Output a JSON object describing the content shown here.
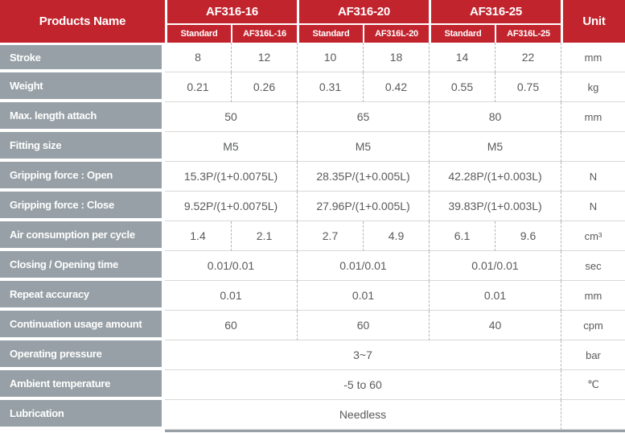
{
  "table": {
    "products_name_label": "Products Name",
    "unit_label": "Unit",
    "colors": {
      "header_red": "#c2242e",
      "label_gray": "#97a0a6",
      "value_text": "#595a5c"
    },
    "products": [
      {
        "name": "AF316-16",
        "sub": [
          "Standard",
          "AF316L-16"
        ]
      },
      {
        "name": "AF316-20",
        "sub": [
          "Standard",
          "AF316L-20"
        ]
      },
      {
        "name": "AF316-25",
        "sub": [
          "Standard",
          "AF316L-25"
        ]
      }
    ],
    "rows": [
      {
        "label": "Stroke",
        "span": "each",
        "values": [
          "8",
          "12",
          "10",
          "18",
          "14",
          "22"
        ],
        "unit": "mm"
      },
      {
        "label": "Weight",
        "span": "each",
        "values": [
          "0.21",
          "0.26",
          "0.31",
          "0.42",
          "0.55",
          "0.75"
        ],
        "unit": "kg"
      },
      {
        "label": "Max. length attach",
        "span": "group",
        "values": [
          "50",
          "65",
          "80"
        ],
        "unit": "mm"
      },
      {
        "label": "Fitting size",
        "span": "group",
        "values": [
          "M5",
          "M5",
          "M5"
        ],
        "unit": ""
      },
      {
        "label": "Gripping force : Open",
        "span": "group",
        "values": [
          "15.3P/(1+0.0075L)",
          "28.35P/(1+0.005L)",
          "42.28P/(1+0.003L)"
        ],
        "unit": "N"
      },
      {
        "label": "Gripping force : Close",
        "span": "group",
        "values": [
          "9.52P/(1+0.0075L)",
          "27.96P/(1+0.005L)",
          "39.83P/(1+0.003L)"
        ],
        "unit": "N"
      },
      {
        "label": "Air consumption per cycle",
        "span": "each",
        "values": [
          "1.4",
          "2.1",
          "2.7",
          "4.9",
          "6.1",
          "9.6"
        ],
        "unit": "cm³"
      },
      {
        "label": "Closing / Opening time",
        "span": "group",
        "values": [
          "0.01/0.01",
          "0.01/0.01",
          "0.01/0.01"
        ],
        "unit": "sec"
      },
      {
        "label": "Repeat accuracy",
        "span": "group",
        "values": [
          "0.01",
          "0.01",
          "0.01"
        ],
        "unit": "mm"
      },
      {
        "label": "Continuation usage amount",
        "span": "group",
        "values": [
          "60",
          "60",
          "40"
        ],
        "unit": "cpm"
      },
      {
        "label": "Operating pressure",
        "span": "all",
        "values": [
          "3~7"
        ],
        "unit": "bar"
      },
      {
        "label": "Ambient temperature",
        "span": "all",
        "values": [
          "-5 to 60"
        ],
        "unit": "℃"
      },
      {
        "label": "Lubrication",
        "span": "all",
        "values": [
          "Needless"
        ],
        "unit": ""
      }
    ]
  }
}
